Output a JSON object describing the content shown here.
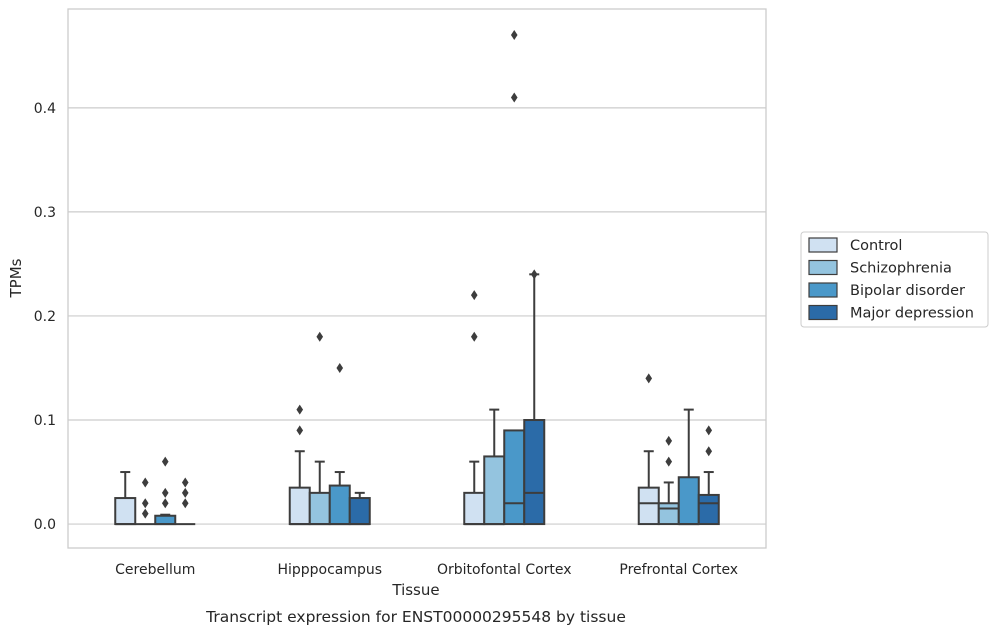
{
  "chart_data": {
    "type": "boxplot",
    "xlabel": "Tissue",
    "ylabel": "TPMs",
    "caption": "Transcript expression for ENST00000295548 by tissue",
    "ylim": [
      -0.023,
      0.495
    ],
    "yticks": [
      0.0,
      0.1,
      0.2,
      0.3,
      0.4
    ],
    "ytick_labels": [
      "0.0",
      "0.1",
      "0.2",
      "0.3",
      "0.4"
    ],
    "grid": "horizontal",
    "legend_position": "right",
    "categories": [
      "Cerebellum",
      "Hipppocampus",
      "Orbitofontal Cortex",
      "Prefrontal Cortex"
    ],
    "series": [
      {
        "name": "Control",
        "color": "#d0e1f2",
        "boxes": [
          {
            "q1": 0.0,
            "median": 0.0,
            "q3": 0.025,
            "whisker_low": 0.0,
            "whisker_high": 0.05,
            "outliers": []
          },
          {
            "q1": 0.0,
            "median": 0.0,
            "q3": 0.035,
            "whisker_low": 0.0,
            "whisker_high": 0.07,
            "outliers": [
              0.09,
              0.11
            ]
          },
          {
            "q1": 0.0,
            "median": 0.0,
            "q3": 0.03,
            "whisker_low": 0.0,
            "whisker_high": 0.06,
            "outliers": [
              0.18,
              0.22
            ]
          },
          {
            "q1": 0.0,
            "median": 0.02,
            "q3": 0.035,
            "whisker_low": 0.0,
            "whisker_high": 0.07,
            "outliers": [
              0.14
            ]
          }
        ]
      },
      {
        "name": "Schizophrenia",
        "color": "#94c4df",
        "boxes": [
          {
            "q1": 0.0,
            "median": 0.0,
            "q3": 0.0,
            "whisker_low": 0.0,
            "whisker_high": 0.0,
            "outliers": [
              0.01,
              0.02,
              0.04
            ]
          },
          {
            "q1": 0.0,
            "median": 0.0,
            "q3": 0.03,
            "whisker_low": 0.0,
            "whisker_high": 0.06,
            "outliers": [
              0.18
            ]
          },
          {
            "q1": 0.0,
            "median": 0.0,
            "q3": 0.065,
            "whisker_low": 0.0,
            "whisker_high": 0.11,
            "outliers": []
          },
          {
            "q1": 0.0,
            "median": 0.015,
            "q3": 0.02,
            "whisker_low": 0.0,
            "whisker_high": 0.04,
            "outliers": [
              0.06,
              0.08
            ]
          }
        ]
      },
      {
        "name": "Bipolar disorder",
        "color": "#4a98c9",
        "boxes": [
          {
            "q1": 0.0,
            "median": 0.0,
            "q3": 0.008,
            "whisker_low": 0.0,
            "whisker_high": 0.009,
            "outliers": [
              0.02,
              0.03,
              0.06
            ]
          },
          {
            "q1": 0.0,
            "median": 0.0,
            "q3": 0.037,
            "whisker_low": 0.0,
            "whisker_high": 0.05,
            "outliers": [
              0.15
            ]
          },
          {
            "q1": 0.0,
            "median": 0.02,
            "q3": 0.09,
            "whisker_low": 0.0,
            "whisker_high": 0.09,
            "outliers": [
              0.41,
              0.47
            ]
          },
          {
            "q1": 0.0,
            "median": 0.0,
            "q3": 0.045,
            "whisker_low": 0.0,
            "whisker_high": 0.11,
            "outliers": []
          }
        ]
      },
      {
        "name": "Major depression",
        "color": "#2b6ba8",
        "boxes": [
          {
            "q1": 0.0,
            "median": 0.0,
            "q3": 0.0,
            "whisker_low": 0.0,
            "whisker_high": 0.0,
            "outliers": [
              0.02,
              0.03,
              0.04
            ]
          },
          {
            "q1": 0.0,
            "median": 0.0,
            "q3": 0.025,
            "whisker_low": 0.0,
            "whisker_high": 0.03,
            "outliers": []
          },
          {
            "q1": 0.0,
            "median": 0.03,
            "q3": 0.1,
            "whisker_low": 0.0,
            "whisker_high": 0.24,
            "outliers": [
              0.24
            ]
          },
          {
            "q1": 0.0,
            "median": 0.02,
            "q3": 0.028,
            "whisker_low": 0.0,
            "whisker_high": 0.05,
            "outliers": [
              0.07,
              0.09
            ]
          }
        ]
      }
    ]
  }
}
